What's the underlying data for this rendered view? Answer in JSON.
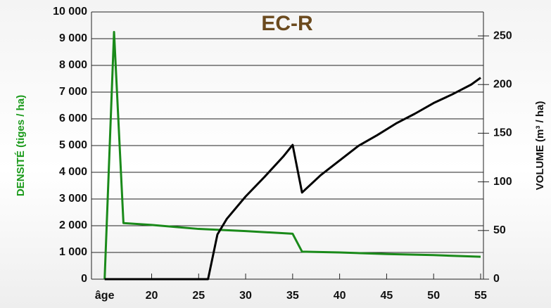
{
  "chart_data": {
    "type": "line",
    "title": "EC-R",
    "ylabel": "DENSITÉ (tiges / ha)",
    "y2label": "VOLUME (m³ / ha)",
    "xlim": [
      13.6,
      55.3
    ],
    "xticks": [
      {
        "value": 15,
        "label": "âge"
      },
      20,
      25,
      30,
      35,
      40,
      45,
      50,
      55
    ],
    "ylim": [
      0,
      10000
    ],
    "yticks": [
      0,
      {
        "value": 1000,
        "label": "1 000"
      },
      {
        "value": 2000,
        "label": "2 000"
      },
      {
        "value": 3000,
        "label": "3 000"
      },
      {
        "value": 4000,
        "label": "4 000"
      },
      {
        "value": 5000,
        "label": "5 000"
      },
      {
        "value": 6000,
        "label": "6 000"
      },
      {
        "value": 7000,
        "label": "7 000"
      },
      {
        "value": 8000,
        "label": "8 000"
      },
      {
        "value": 9000,
        "label": "9 000"
      },
      {
        "value": 10000,
        "label": "10 000"
      }
    ],
    "y2lim": [
      0,
      274.6
    ],
    "y2ticks": [
      0,
      50,
      100,
      150,
      200,
      250
    ],
    "grid": true,
    "series": [
      {
        "name": "DENSITÉ",
        "color": "#1a8a1a",
        "x": [
          15,
          16,
          17,
          20,
          25,
          30,
          35,
          36,
          40,
          45,
          50,
          55
        ],
        "values": [
          0,
          9250,
          2100,
          2030,
          1880,
          1800,
          1700,
          1030,
          1000,
          940,
          900,
          840
        ]
      },
      {
        "name": "VOLUME",
        "color": "#000000",
        "axis": "y2",
        "x": [
          15,
          26,
          27,
          28,
          30,
          32,
          34,
          35,
          36,
          38,
          40,
          42,
          44,
          46,
          48,
          50,
          52,
          54,
          55
        ],
        "values": [
          0,
          0,
          46,
          62,
          85,
          105,
          126,
          138,
          89,
          107,
          122,
          137,
          148,
          160,
          170,
          181,
          190,
          200,
          207
        ]
      }
    ]
  }
}
